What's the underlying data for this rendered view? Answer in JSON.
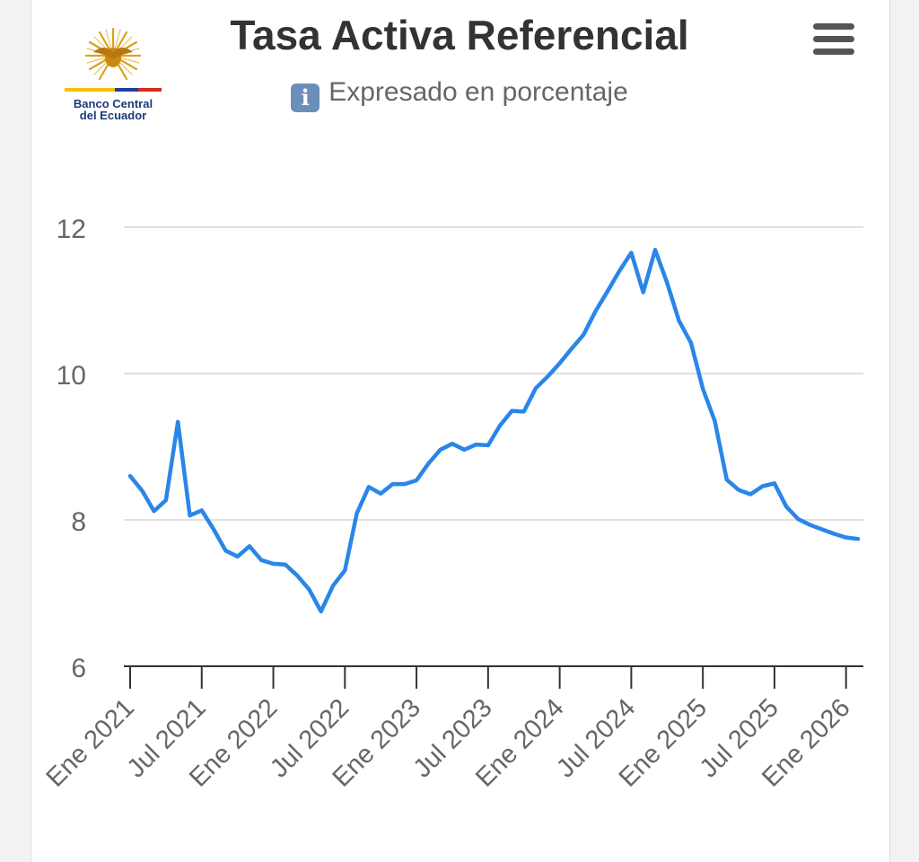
{
  "header": {
    "title": "Tasa Activa Referencial",
    "subtitle": "Expresado en porcentaje",
    "info_icon": "info-icon",
    "menu_icon": "hamburger-menu-icon"
  },
  "logo": {
    "text_line1": "Banco Central",
    "text_line2": "del Ecuador"
  },
  "colors": {
    "line": "#2a86e8",
    "grid": "#e0e0e0",
    "axis": "#333333",
    "tick_label": "#666666"
  },
  "chart_data": {
    "type": "line",
    "title": "Tasa Activa Referencial",
    "subtitle": "Expresado en porcentaje",
    "xlabel": "",
    "ylabel": "",
    "ylim": [
      6,
      12.4
    ],
    "yticks": [
      6,
      8,
      10,
      12
    ],
    "grid": true,
    "legend": "none",
    "x_range": [
      "2021-01",
      "2026-02"
    ],
    "x_ticks": [
      {
        "date": "2021-01",
        "label": "Ene 2021"
      },
      {
        "date": "2021-07",
        "label": "Jul 2021"
      },
      {
        "date": "2022-01",
        "label": "Ene 2022"
      },
      {
        "date": "2022-07",
        "label": "Jul 2022"
      },
      {
        "date": "2023-01",
        "label": "Ene 2023"
      },
      {
        "date": "2023-07",
        "label": "Jul 2023"
      },
      {
        "date": "2024-01",
        "label": "Ene 2024"
      },
      {
        "date": "2024-07",
        "label": "Jul 2024"
      },
      {
        "date": "2025-01",
        "label": "Ene 2025"
      },
      {
        "date": "2025-07",
        "label": "Jul 2025"
      },
      {
        "date": "2026-01",
        "label": "Ene 2026"
      }
    ],
    "series": [
      {
        "x": [
          "2021-01",
          "2021-02",
          "2021-03",
          "2021-04",
          "2021-05",
          "2021-06",
          "2021-07",
          "2021-08",
          "2021-09",
          "2021-10",
          "2021-11",
          "2021-12",
          "2022-01",
          "2022-02",
          "2022-03",
          "2022-04",
          "2022-05",
          "2022-06",
          "2022-07",
          "2022-08",
          "2022-09",
          "2022-10",
          "2022-11",
          "2022-12",
          "2023-01",
          "2023-02",
          "2023-03",
          "2023-04",
          "2023-05",
          "2023-06",
          "2023-07",
          "2023-08",
          "2023-09",
          "2023-10",
          "2023-11",
          "2023-12",
          "2024-01",
          "2024-02",
          "2024-03",
          "2024-04",
          "2024-05",
          "2024-06",
          "2024-07",
          "2024-08",
          "2024-09",
          "2024-10",
          "2024-11",
          "2024-12",
          "2025-01",
          "2025-02",
          "2025-03",
          "2025-04",
          "2025-05",
          "2025-06",
          "2025-07",
          "2025-08",
          "2025-09",
          "2025-10",
          "2025-11",
          "2025-12",
          "2026-01",
          "2026-02"
        ],
        "values": [
          8.6,
          8.4,
          8.12,
          8.27,
          9.34,
          8.06,
          8.13,
          7.87,
          7.58,
          7.5,
          7.64,
          7.45,
          7.4,
          7.39,
          7.24,
          7.05,
          6.75,
          7.1,
          7.31,
          8.09,
          8.45,
          8.36,
          8.49,
          8.49,
          8.54,
          8.77,
          8.96,
          9.04,
          8.96,
          9.03,
          9.02,
          9.29,
          9.49,
          9.48,
          9.8,
          9.96,
          10.14,
          10.34,
          10.53,
          10.85,
          11.12,
          11.4,
          11.65,
          11.11,
          11.69,
          11.24,
          10.72,
          10.42,
          9.79,
          9.35,
          8.55,
          8.41,
          8.35,
          8.46,
          8.5,
          8.18,
          8.01,
          7.93,
          7.87,
          7.81,
          7.76,
          7.74
        ]
      }
    ]
  }
}
